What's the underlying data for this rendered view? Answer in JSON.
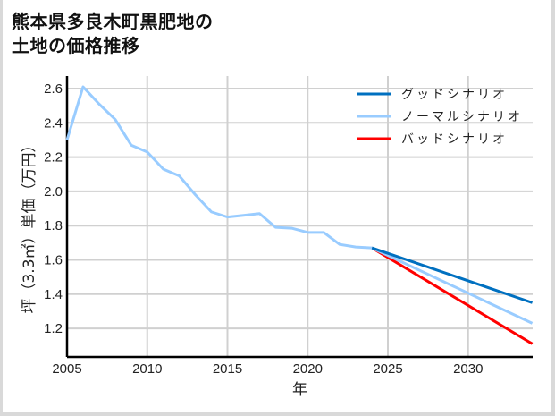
{
  "title": {
    "line1": "熊本県多良木町黒肥地の",
    "line2": "土地の価格推移"
  },
  "chart_data": {
    "type": "line",
    "title": "熊本県多良木町黒肥地の土地の価格推移",
    "xlabel": "年",
    "ylabel": "坪（3.3㎡）単価（万円）",
    "xlim": [
      2005,
      2034
    ],
    "ylim": [
      1.05,
      2.68
    ],
    "x_ticks": [
      2005,
      2010,
      2015,
      2020,
      2025,
      2030
    ],
    "y_ticks": [
      1.2,
      1.4,
      1.6,
      1.8,
      2.0,
      2.2,
      2.4,
      2.6
    ],
    "grid": true,
    "legend_position": "upper right",
    "historical": {
      "x": [
        2005,
        2006,
        2007,
        2008,
        2009,
        2010,
        2011,
        2012,
        2013,
        2014,
        2015,
        2016,
        2017,
        2018,
        2019,
        2020,
        2021,
        2022,
        2023,
        2024
      ],
      "y": [
        2.3,
        2.61,
        2.51,
        2.42,
        2.27,
        2.23,
        2.13,
        2.09,
        1.98,
        1.88,
        1.85,
        1.86,
        1.87,
        1.79,
        1.785,
        1.76,
        1.76,
        1.69,
        1.675,
        1.67
      ],
      "color": "#99ccff"
    },
    "series": [
      {
        "name": "グッドシナリオ",
        "color": "#0070c0",
        "x": [
          2024,
          2034
        ],
        "y": [
          1.67,
          1.35
        ]
      },
      {
        "name": "ノーマルシナリオ",
        "color": "#99ccff",
        "x": [
          2024,
          2034
        ],
        "y": [
          1.67,
          1.23
        ]
      },
      {
        "name": "バッドシナリオ",
        "color": "#ff0000",
        "x": [
          2024,
          2034
        ],
        "y": [
          1.67,
          1.11
        ]
      }
    ]
  }
}
